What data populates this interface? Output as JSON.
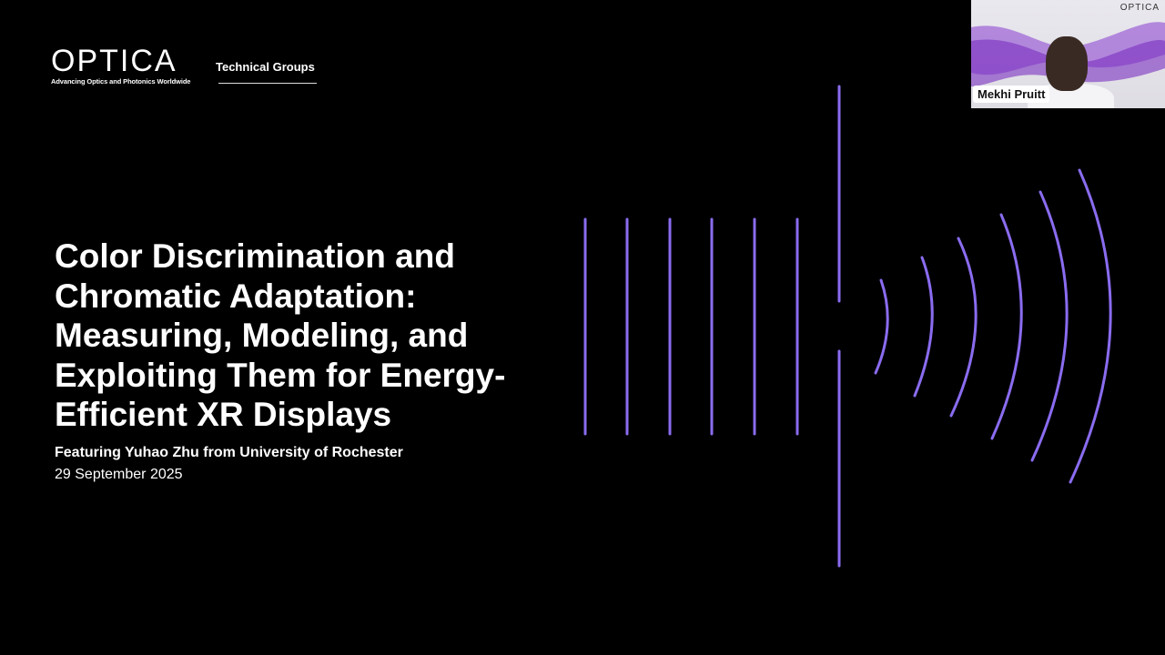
{
  "logo": {
    "word": "OPTICA",
    "tagline": "Advancing Optics and Photonics Worldwide"
  },
  "header": {
    "section": "Technical Groups"
  },
  "slide": {
    "title": "Color Discrimination and Chromatic Adaptation: Measuring, Modeling, and Exploiting Them for Energy-Efficient XR Displays",
    "featuring": "Featuring Yuhao Zhu from University of Rochester",
    "date": "29 September 2025"
  },
  "video": {
    "participant_name": "Mekhi Pruitt",
    "background_logo": "OPTICA"
  },
  "colors": {
    "accent": "#8a6cf0",
    "background": "#000000"
  }
}
